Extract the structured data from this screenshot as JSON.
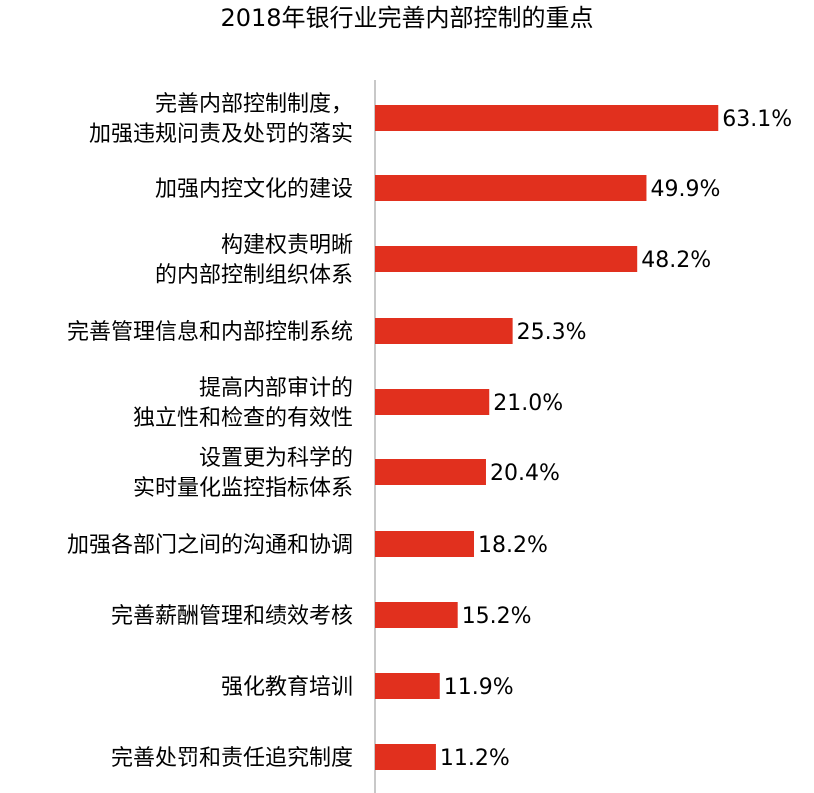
{
  "chart_data": {
    "type": "bar",
    "orientation": "horizontal",
    "title": "2018年银行业完善内部控制的重点",
    "categories": [
      [
        "完善内部控制制度，",
        "加强违规问责及处罚的落实"
      ],
      [
        "加强内控文化的建设"
      ],
      [
        "构建权责明晰",
        "的内部控制组织体系"
      ],
      [
        "完善管理信息和内部控制系统"
      ],
      [
        "提高内部审计的",
        "独立性和检查的有效性"
      ],
      [
        "设置更为科学的",
        "实时量化监控指标体系"
      ],
      [
        "加强各部门之间的沟通和协调"
      ],
      [
        "完善薪酬管理和绩效考核"
      ],
      [
        "强化教育培训"
      ],
      [
        "完善处罚和责任追究制度"
      ]
    ],
    "values": [
      63.1,
      49.9,
      48.2,
      25.3,
      21.0,
      20.4,
      18.2,
      15.2,
      11.9,
      11.2
    ],
    "value_labels": [
      "63.1%",
      "49.9%",
      "48.2%",
      "25.3%",
      "21.0%",
      "20.4%",
      "18.2%",
      "15.2%",
      "11.9%",
      "11.2%"
    ],
    "unit": "%",
    "xlim": [
      0,
      100
    ],
    "grid": false,
    "legend": "none",
    "bar_color": "#E1301E",
    "axis_color": "#C8C8C8"
  }
}
